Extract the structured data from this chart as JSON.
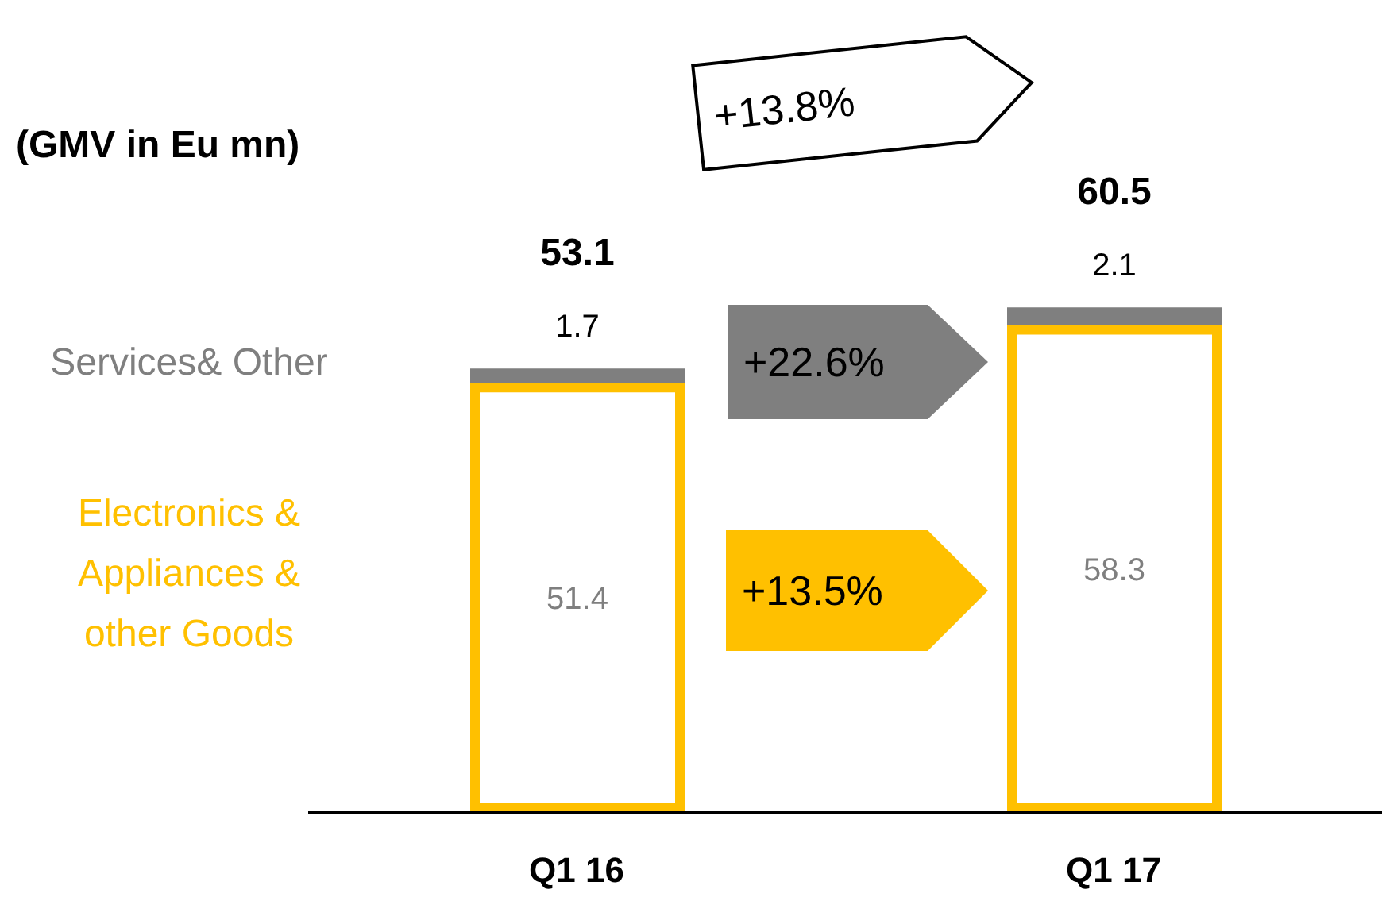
{
  "chart_data": {
    "type": "bar",
    "title": "(GMV in Eu mn)",
    "categories": [
      "Q1 16",
      "Q1 17"
    ],
    "stacked": true,
    "data_labels": true,
    "totals": [
      "53.1",
      "60.5"
    ],
    "series": [
      {
        "name": "Electronics & Appliances & other Goods",
        "color": "#ffc000",
        "values": [
          51.4,
          58.3
        ]
      },
      {
        "name": "Services& Other",
        "color": "#7f7f7f",
        "values": [
          1.7,
          2.1
        ]
      }
    ],
    "annotations": [
      "+13.8%",
      "+22.6%",
      "+13.5%"
    ]
  }
}
